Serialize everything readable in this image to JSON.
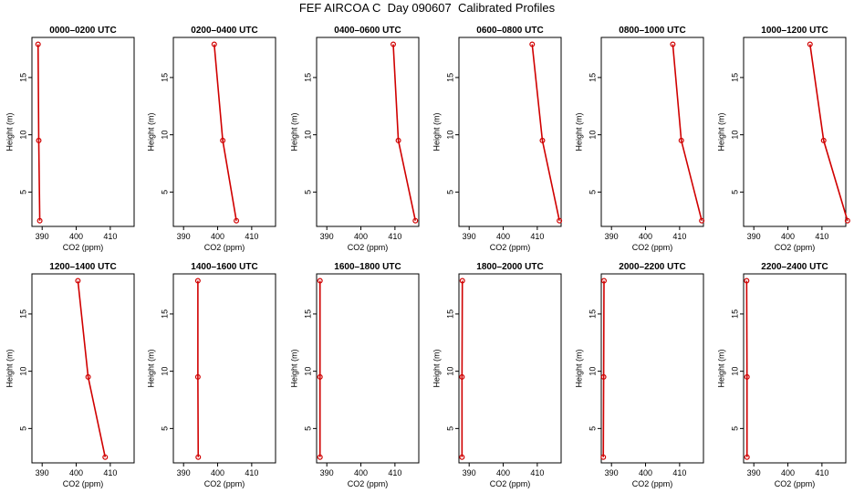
{
  "title": "FEF AIRCOA C  Day 090607  Calibrated Profiles",
  "colors": {
    "line": "#d00000",
    "axes": "#000000",
    "background": "#ffffff"
  },
  "chart_data": [
    {
      "type": "line",
      "title": "0000–0200 UTC",
      "xlabel": "CO2 (ppm)",
      "ylabel": "Height (m)",
      "xlim": [
        387,
        417
      ],
      "ylim": [
        2,
        18.5
      ],
      "xticks": [
        390,
        400,
        410
      ],
      "yticks": [
        5,
        10,
        15
      ],
      "x": [
        388.8,
        389.0,
        389.3
      ],
      "y": [
        17.9,
        9.5,
        2.5
      ],
      "grid": false
    },
    {
      "type": "line",
      "title": "0200–0400 UTC",
      "xlabel": "CO2 (ppm)",
      "ylabel": "Height (m)",
      "xlim": [
        387,
        417
      ],
      "ylim": [
        2,
        18.5
      ],
      "xticks": [
        390,
        400,
        410
      ],
      "yticks": [
        5,
        10,
        15
      ],
      "x": [
        399.0,
        401.5,
        405.5
      ],
      "y": [
        17.9,
        9.5,
        2.5
      ],
      "grid": false
    },
    {
      "type": "line",
      "title": "0400–0600 UTC",
      "xlabel": "CO2 (ppm)",
      "ylabel": "Height (m)",
      "xlim": [
        387,
        417
      ],
      "ylim": [
        2,
        18.5
      ],
      "xticks": [
        390,
        400,
        410
      ],
      "yticks": [
        5,
        10,
        15
      ],
      "x": [
        409.5,
        411.0,
        416.0
      ],
      "y": [
        17.9,
        9.5,
        2.5
      ],
      "grid": false
    },
    {
      "type": "line",
      "title": "0600–0800 UTC",
      "xlabel": "CO2 (ppm)",
      "ylabel": "Height (m)",
      "xlim": [
        387,
        417
      ],
      "ylim": [
        2,
        18.5
      ],
      "xticks": [
        390,
        400,
        410
      ],
      "yticks": [
        5,
        10,
        15
      ],
      "x": [
        408.5,
        411.5,
        416.5
      ],
      "y": [
        17.9,
        9.5,
        2.5
      ],
      "grid": false
    },
    {
      "type": "line",
      "title": "0800–1000 UTC",
      "xlabel": "CO2 (ppm)",
      "ylabel": "Height (m)",
      "xlim": [
        387,
        417
      ],
      "ylim": [
        2,
        18.5
      ],
      "xticks": [
        390,
        400,
        410
      ],
      "yticks": [
        5,
        10,
        15
      ],
      "x": [
        408.0,
        410.5,
        416.5
      ],
      "y": [
        17.9,
        9.5,
        2.5
      ],
      "grid": false
    },
    {
      "type": "line",
      "title": "1000–1200 UTC",
      "xlabel": "CO2 (ppm)",
      "ylabel": "Height (m)",
      "xlim": [
        387,
        417
      ],
      "ylim": [
        2,
        18.5
      ],
      "xticks": [
        390,
        400,
        410
      ],
      "yticks": [
        5,
        10,
        15
      ],
      "x": [
        406.5,
        410.5,
        417.5
      ],
      "y": [
        17.9,
        9.5,
        2.5
      ],
      "grid": false
    },
    {
      "type": "line",
      "title": "1200–1400 UTC",
      "xlabel": "CO2 (ppm)",
      "ylabel": "Height (m)",
      "xlim": [
        387,
        417
      ],
      "ylim": [
        2,
        18.5
      ],
      "xticks": [
        390,
        400,
        410
      ],
      "yticks": [
        5,
        10,
        15
      ],
      "x": [
        400.5,
        403.5,
        408.5
      ],
      "y": [
        17.9,
        9.5,
        2.5
      ],
      "grid": false
    },
    {
      "type": "line",
      "title": "1400–1600 UTC",
      "xlabel": "CO2 (ppm)",
      "ylabel": "Height (m)",
      "xlim": [
        387,
        417
      ],
      "ylim": [
        2,
        18.5
      ],
      "xticks": [
        390,
        400,
        410
      ],
      "yticks": [
        5,
        10,
        15
      ],
      "x": [
        394.2,
        394.2,
        394.3
      ],
      "y": [
        17.9,
        9.5,
        2.5
      ],
      "grid": false
    },
    {
      "type": "line",
      "title": "1600–1800 UTC",
      "xlabel": "CO2 (ppm)",
      "ylabel": "Height (m)",
      "xlim": [
        387,
        417
      ],
      "ylim": [
        2,
        18.5
      ],
      "xticks": [
        390,
        400,
        410
      ],
      "yticks": [
        5,
        10,
        15
      ],
      "x": [
        388.0,
        388.0,
        388.0
      ],
      "y": [
        17.9,
        9.5,
        2.5
      ],
      "grid": false
    },
    {
      "type": "line",
      "title": "1800–2000 UTC",
      "xlabel": "CO2 (ppm)",
      "ylabel": "Height (m)",
      "xlim": [
        387,
        417
      ],
      "ylim": [
        2,
        18.5
      ],
      "xticks": [
        390,
        400,
        410
      ],
      "yticks": [
        5,
        10,
        15
      ],
      "x": [
        388.0,
        387.9,
        387.9
      ],
      "y": [
        17.9,
        9.5,
        2.5
      ],
      "grid": false
    },
    {
      "type": "line",
      "title": "2000–2200 UTC",
      "xlabel": "CO2 (ppm)",
      "ylabel": "Height (m)",
      "xlim": [
        387,
        417
      ],
      "ylim": [
        2,
        18.5
      ],
      "xticks": [
        390,
        400,
        410
      ],
      "yticks": [
        5,
        10,
        15
      ],
      "x": [
        387.8,
        387.7,
        387.6
      ],
      "y": [
        17.9,
        9.5,
        2.5
      ],
      "grid": false
    },
    {
      "type": "line",
      "title": "2200–2400 UTC",
      "xlabel": "CO2 (ppm)",
      "ylabel": "Height (m)",
      "xlim": [
        387,
        417
      ],
      "ylim": [
        2,
        18.5
      ],
      "xticks": [
        390,
        400,
        410
      ],
      "yticks": [
        5,
        10,
        15
      ],
      "x": [
        387.9,
        388.0,
        388.0
      ],
      "y": [
        17.9,
        9.5,
        2.5
      ],
      "grid": false
    }
  ]
}
